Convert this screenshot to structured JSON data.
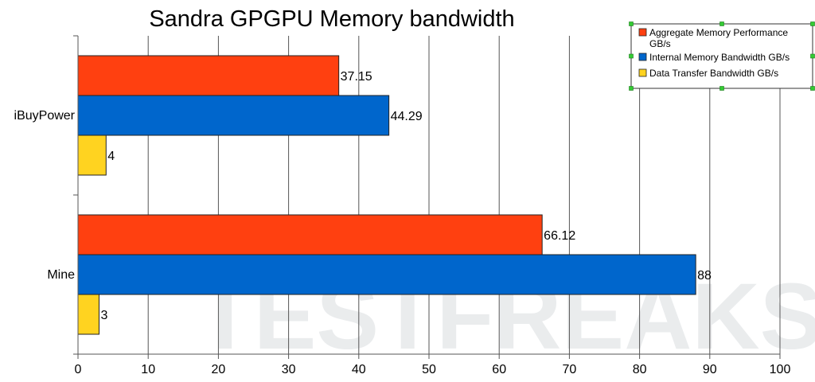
{
  "chart_data": {
    "type": "bar",
    "orientation": "horizontal",
    "title": "Sandra GPGPU Memory bandwidth",
    "categories": [
      "iBuyPower",
      "Mine"
    ],
    "series": [
      {
        "name": "Aggregate Memory Performance GB/s",
        "values": [
          37.15,
          66.12
        ],
        "labels": [
          "37.15",
          "66.12"
        ],
        "color": "#ff4010"
      },
      {
        "name": "Internal Memory Bandwidth GB/s",
        "values": [
          44.29,
          88
        ],
        "labels": [
          "44.29",
          "88"
        ],
        "color": "#0066cc"
      },
      {
        "name": "Data Transfer Bandwidth GB/s",
        "values": [
          4,
          3
        ],
        "labels": [
          "4",
          "3"
        ],
        "color": "#ffd320"
      }
    ],
    "xlim": [
      0,
      100
    ],
    "xticks": [
      "0",
      "10",
      "20",
      "30",
      "40",
      "50",
      "60",
      "70",
      "80",
      "90",
      "100"
    ],
    "grid": "vertical",
    "legend": "top-right",
    "xlabel": "",
    "ylabel": ""
  },
  "watermark": "TESTFREAKS"
}
